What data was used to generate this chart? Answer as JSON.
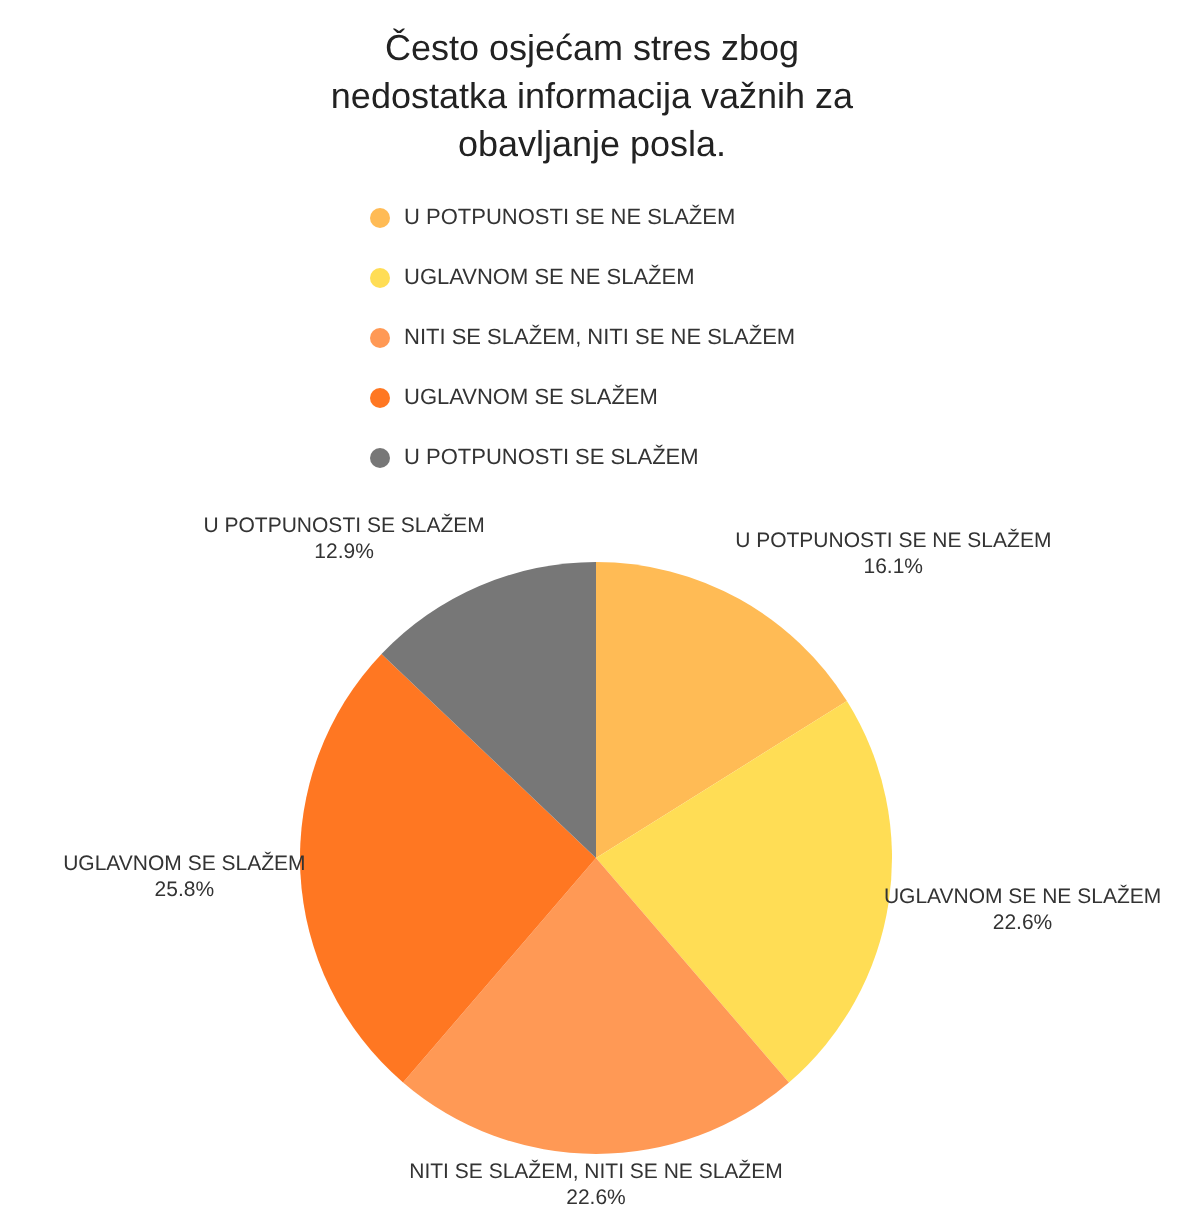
{
  "chart_data": {
    "type": "pie",
    "title": "Često osjećam stres zbog nedostatka informacija važnih za obavljanje posla.",
    "categories": [
      "U POTPUNOSTI SE NE SLAŽEM",
      "UGLAVNOM SE NE SLAŽEM",
      "NITI SE SLAŽEM, NITI SE NE SLAŽEM",
      "UGLAVNOM SE SLAŽEM",
      "U POTPUNOSTI SE SLAŽEM"
    ],
    "values": [
      16.1,
      22.6,
      22.6,
      25.8,
      12.9
    ],
    "value_labels": [
      "16.1%",
      "22.6%",
      "22.6%",
      "25.8%",
      "12.9%"
    ],
    "colors": [
      "#ffbb55",
      "#ffdd55",
      "#ff9955",
      "#ff7722",
      "#777777"
    ],
    "legend": "top"
  }
}
